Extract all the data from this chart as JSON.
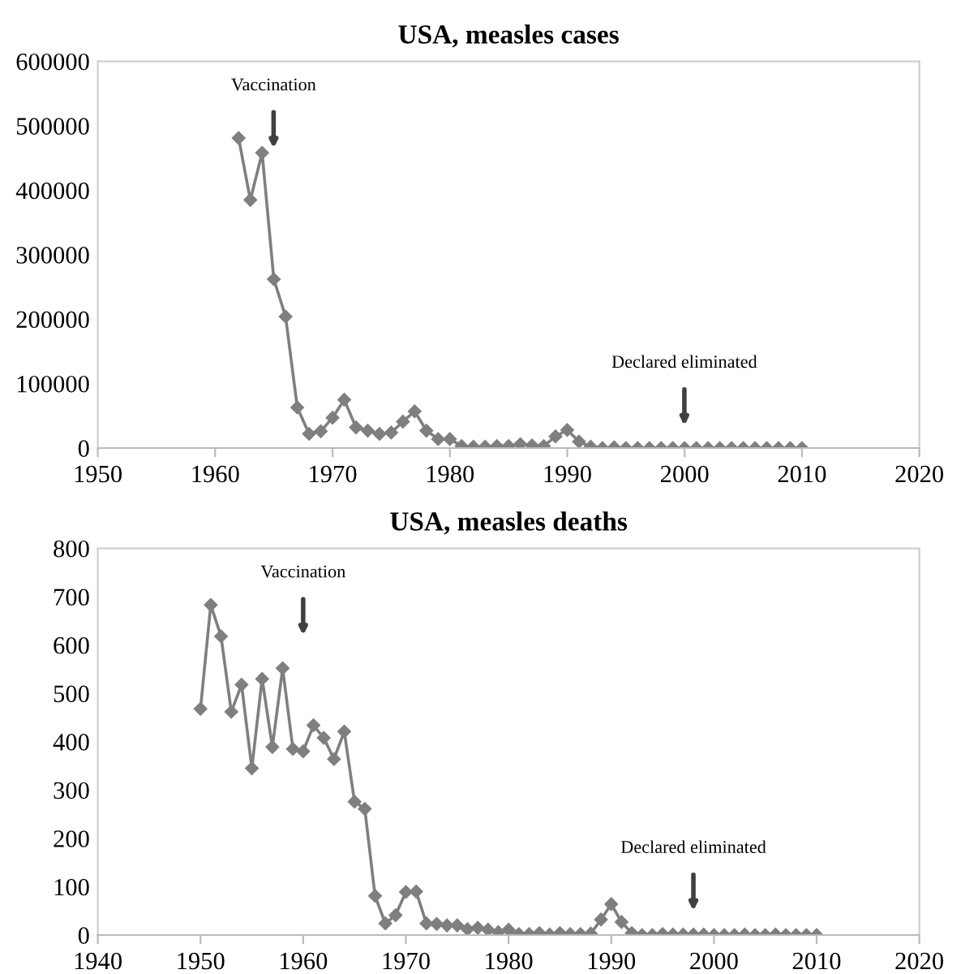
{
  "chart_data": [
    {
      "type": "line",
      "title": "USA, measles cases",
      "x": [
        1962,
        1963,
        1964,
        1965,
        1966,
        1967,
        1968,
        1969,
        1970,
        1971,
        1972,
        1973,
        1974,
        1975,
        1976,
        1977,
        1978,
        1979,
        1980,
        1981,
        1982,
        1983,
        1984,
        1985,
        1986,
        1987,
        1988,
        1989,
        1990,
        1991,
        1992,
        1993,
        1994,
        1995,
        1996,
        1997,
        1998,
        1999,
        2000,
        2001,
        2002,
        2003,
        2004,
        2005,
        2006,
        2007,
        2008,
        2009,
        2010
      ],
      "series": [
        {
          "color": "#7f7f7f",
          "values": [
            481000,
            385000,
            458000,
            262000,
            204000,
            63000,
            22000,
            26000,
            47000,
            75000,
            32000,
            27000,
            22000,
            24000,
            41000,
            57000,
            27000,
            14000,
            14000,
            3000,
            2000,
            2000,
            3000,
            3000,
            6000,
            4000,
            3000,
            18000,
            28000,
            10000,
            2000,
            0,
            1000,
            0,
            0,
            0,
            0,
            0,
            0,
            0,
            0,
            0,
            0,
            0,
            0,
            0,
            0,
            0,
            0
          ]
        }
      ],
      "xlim": [
        1950,
        2020
      ],
      "xticks": [
        1950,
        1960,
        1970,
        1980,
        1990,
        2000,
        2010,
        2020
      ],
      "ylim": [
        0,
        600000
      ],
      "yticks": [
        0,
        100000,
        200000,
        300000,
        400000,
        500000,
        600000
      ],
      "annotations": [
        "Vaccination",
        "Declared eliminated"
      ],
      "marker": "diamond",
      "line_style": "solid",
      "grid": false,
      "legend": false
    },
    {
      "type": "line",
      "title": "USA, measles deaths",
      "x": [
        1950,
        1951,
        1952,
        1953,
        1954,
        1955,
        1956,
        1957,
        1958,
        1959,
        1960,
        1961,
        1962,
        1963,
        1964,
        1965,
        1966,
        1967,
        1968,
        1969,
        1970,
        1971,
        1972,
        1973,
        1974,
        1975,
        1976,
        1977,
        1978,
        1979,
        1980,
        1981,
        1982,
        1983,
        1984,
        1985,
        1986,
        1987,
        1988,
        1989,
        1990,
        1991,
        1992,
        1993,
        1994,
        1995,
        1996,
        1997,
        1998,
        1999,
        2000,
        2001,
        2002,
        2003,
        2004,
        2005,
        2006,
        2007,
        2008,
        2009,
        2010
      ],
      "series": [
        {
          "color": "#7f7f7f",
          "values": [
            468,
            683,
            618,
            462,
            518,
            345,
            530,
            389,
            552,
            385,
            380,
            434,
            408,
            364,
            421,
            276,
            261,
            81,
            24,
            41,
            89,
            90,
            24,
            23,
            20,
            20,
            12,
            15,
            11,
            6,
            11,
            2,
            2,
            4,
            1,
            4,
            2,
            2,
            3,
            32,
            64,
            27,
            4,
            0,
            0,
            2,
            1,
            1,
            1,
            1,
            0,
            0,
            0,
            1,
            0,
            0,
            1,
            0,
            0,
            0,
            0
          ]
        }
      ],
      "xlim": [
        1940,
        2020
      ],
      "xticks": [
        1940,
        1950,
        1960,
        1970,
        1980,
        1990,
        2000,
        2010,
        2020
      ],
      "ylim": [
        0,
        800
      ],
      "yticks": [
        0,
        100,
        200,
        300,
        400,
        500,
        600,
        700,
        800
      ],
      "annotations": [
        "Vaccination",
        "Declared eliminated"
      ],
      "marker": "diamond",
      "line_style": "solid",
      "grid": false,
      "legend": false
    }
  ]
}
